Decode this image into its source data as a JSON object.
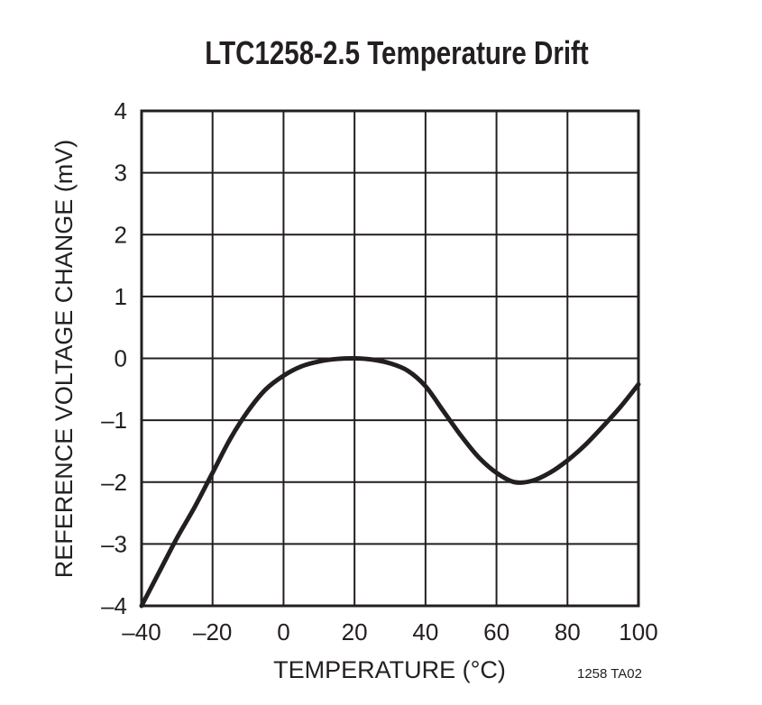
{
  "chart_data": {
    "type": "line",
    "title": "LTC1258-2.5 Temperature Drift",
    "xlabel": "TEMPERATURE (°C)",
    "ylabel": "REFERENCE VOLTAGE CHANGE (mV)",
    "xlim": [
      -40,
      100
    ],
    "ylim": [
      -4,
      4
    ],
    "x_ticks": [
      "–40",
      "–20",
      "0",
      "20",
      "40",
      "60",
      "80",
      "100"
    ],
    "y_ticks": [
      "4",
      "3",
      "2",
      "1",
      "0",
      "–1",
      "–2",
      "–3",
      "–4"
    ],
    "grid": true,
    "legend": null,
    "annotation": "1258 TA02",
    "series": [
      {
        "name": "Reference Voltage Change",
        "x": [
          -40,
          -35,
          -30,
          -25,
          -20,
          -15,
          -10,
          -5,
          0,
          5,
          10,
          15,
          20,
          25,
          30,
          35,
          40,
          45,
          50,
          55,
          60,
          65,
          70,
          75,
          80,
          85,
          90,
          95,
          100
        ],
        "y": [
          -4.0,
          -3.45,
          -2.9,
          -2.4,
          -1.85,
          -1.3,
          -0.85,
          -0.5,
          -0.28,
          -0.13,
          -0.05,
          -0.01,
          0.0,
          -0.02,
          -0.08,
          -0.2,
          -0.45,
          -0.85,
          -1.25,
          -1.6,
          -1.85,
          -2.0,
          -1.98,
          -1.85,
          -1.65,
          -1.4,
          -1.1,
          -0.78,
          -0.42
        ]
      }
    ]
  },
  "footer": {
    "code": "1258 TA02"
  }
}
